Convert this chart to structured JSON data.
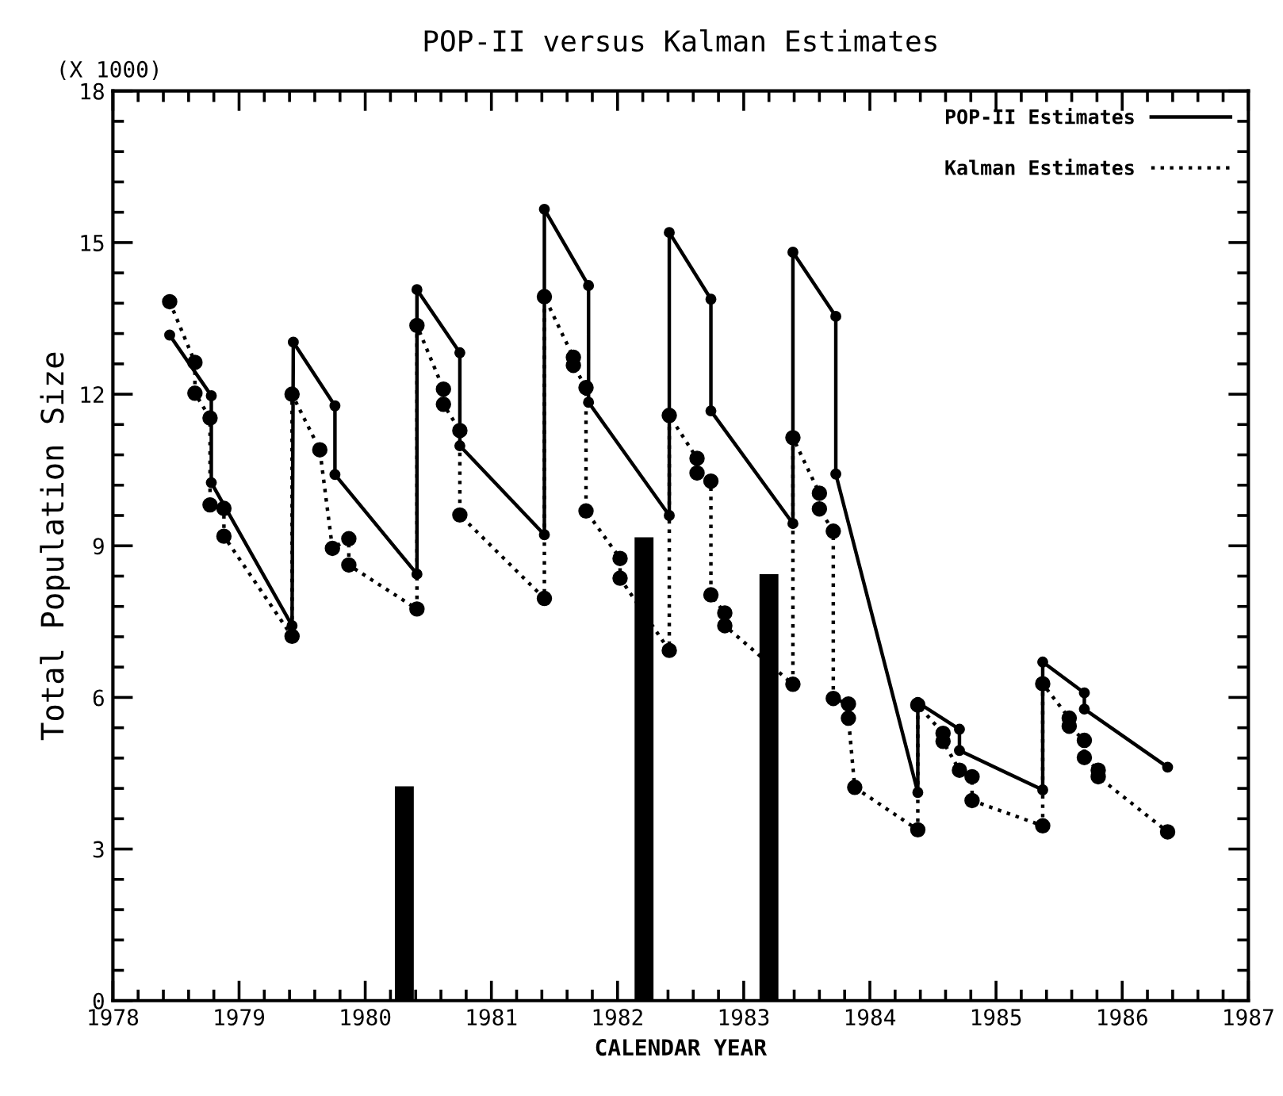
{
  "chart_data": {
    "type": "line",
    "title": "POP-II versus Kalman Estimates",
    "xlabel": "CALENDAR YEAR",
    "ylabel": "Total Population Size",
    "annotations": [
      "(X 1000)"
    ],
    "xlim": [
      1978,
      1987
    ],
    "xticks": [
      1978,
      1979,
      1980,
      1981,
      1982,
      1983,
      1984,
      1985,
      1986,
      1987
    ],
    "ylim": [
      0,
      18
    ],
    "yticks": [
      0,
      3,
      6,
      9,
      12,
      15,
      18
    ],
    "legend": "top right",
    "grid": false,
    "series": [
      {
        "name": "POP-II Estimates",
        "line_style": "solid",
        "marker": "circle",
        "color": "#000000",
        "x": [
          1978.45,
          1978.78,
          1978.78,
          1979.42,
          1979.43,
          1979.76,
          1979.76,
          1980.41,
          1980.41,
          1980.75,
          1980.75,
          1981.42,
          1981.42,
          1981.77,
          1981.77,
          1982.41,
          1982.41,
          1982.74,
          1982.74,
          1983.39,
          1983.39,
          1983.73,
          1983.73,
          1984.38,
          1984.38,
          1984.71,
          1984.71,
          1985.37,
          1985.37,
          1985.7,
          1985.7,
          1986.36
        ],
        "values": [
          13.17,
          11.97,
          10.25,
          7.42,
          13.03,
          11.77,
          10.41,
          8.44,
          14.07,
          12.82,
          10.98,
          9.22,
          15.66,
          14.15,
          11.84,
          9.6,
          15.2,
          13.88,
          11.67,
          9.44,
          14.81,
          13.54,
          10.42,
          4.12,
          5.9,
          5.37,
          4.95,
          4.17,
          6.7,
          6.09,
          5.77,
          4.62
        ]
      },
      {
        "name": "Kalman Estimates",
        "line_style": "dotted",
        "marker": "circle",
        "color": "#000000",
        "x": [
          1978.45,
          1978.65,
          1978.65,
          1978.77,
          1978.77,
          1978.88,
          1978.88,
          1979.42,
          1979.42,
          1979.64,
          1979.74,
          1979.87,
          1979.87,
          1980.41,
          1980.41,
          1980.62,
          1980.62,
          1980.75,
          1980.75,
          1981.42,
          1981.42,
          1981.65,
          1981.65,
          1981.75,
          1981.75,
          1982.02,
          1982.02,
          1982.41,
          1982.41,
          1982.63,
          1982.63,
          1982.74,
          1982.74,
          1982.85,
          1982.85,
          1983.39,
          1983.39,
          1983.6,
          1983.6,
          1983.71,
          1983.71,
          1983.83,
          1983.83,
          1983.88,
          1984.38,
          1984.38,
          1984.58,
          1984.58,
          1984.71,
          1984.81,
          1984.81,
          1985.37,
          1985.37,
          1985.58,
          1985.58,
          1985.7,
          1985.7,
          1985.81,
          1985.81,
          1986.36
        ],
        "values": [
          13.83,
          12.63,
          12.02,
          11.53,
          9.81,
          9.74,
          9.19,
          7.21,
          12.0,
          10.9,
          8.95,
          9.14,
          8.62,
          7.75,
          13.36,
          12.1,
          11.8,
          11.28,
          9.61,
          7.96,
          13.93,
          12.73,
          12.57,
          12.13,
          9.69,
          8.75,
          8.36,
          6.93,
          11.58,
          10.73,
          10.44,
          10.28,
          8.03,
          7.67,
          7.42,
          6.26,
          11.14,
          10.04,
          9.73,
          9.29,
          5.98,
          5.87,
          5.59,
          4.22,
          3.38,
          5.85,
          5.29,
          5.13,
          4.56,
          4.43,
          3.96,
          3.46,
          6.27,
          5.59,
          5.43,
          5.15,
          4.81,
          4.56,
          4.43,
          3.34
        ]
      },
      {
        "type": "bar",
        "color": "#000000",
        "x": [
          1980.31,
          1982.21,
          1983.2
        ],
        "values": [
          4.24,
          9.17,
          8.44
        ]
      }
    ]
  }
}
